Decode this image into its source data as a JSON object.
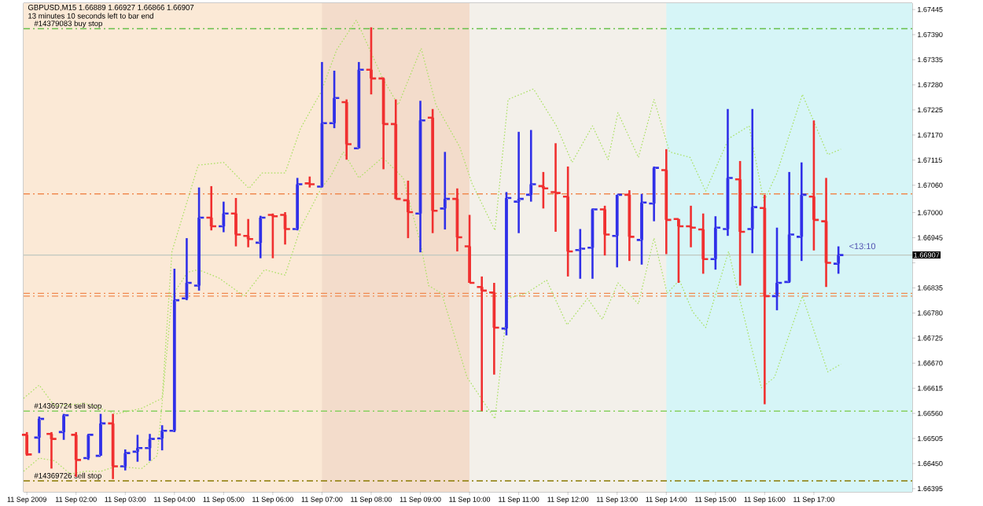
{
  "chart_data": {
    "type": "candlestick",
    "title": "GBPUSD,M15  1.66889 1.66927 1.66866 1.66907",
    "subtitle": "13 minutes 10 seconds left to bar end",
    "x": [
      "2009-09-11T01:00",
      "2009-09-11T01:15",
      "2009-09-11T01:30",
      "2009-09-11T01:45",
      "2009-09-11T02:00",
      "2009-09-11T02:15",
      "2009-09-11T02:30",
      "2009-09-11T02:45",
      "2009-09-11T03:00",
      "2009-09-11T03:15",
      "2009-09-11T03:30",
      "2009-09-11T03:45",
      "2009-09-11T04:00",
      "2009-09-11T04:15",
      "2009-09-11T04:30",
      "2009-09-11T04:45",
      "2009-09-11T05:00",
      "2009-09-11T05:15",
      "2009-09-11T05:30",
      "2009-09-11T05:45",
      "2009-09-11T06:00",
      "2009-09-11T06:15",
      "2009-09-11T06:30",
      "2009-09-11T06:45",
      "2009-09-11T07:00",
      "2009-09-11T07:15",
      "2009-09-11T07:30",
      "2009-09-11T07:45",
      "2009-09-11T08:00",
      "2009-09-11T08:15",
      "2009-09-11T08:30",
      "2009-09-11T08:45",
      "2009-09-11T09:00",
      "2009-09-11T09:15",
      "2009-09-11T09:30",
      "2009-09-11T09:45",
      "2009-09-11T10:00",
      "2009-09-11T10:15",
      "2009-09-11T10:30",
      "2009-09-11T10:45",
      "2009-09-11T11:00",
      "2009-09-11T11:15",
      "2009-09-11T11:30",
      "2009-09-11T11:45",
      "2009-09-11T12:00",
      "2009-09-11T12:15",
      "2009-09-11T12:30",
      "2009-09-11T12:45",
      "2009-09-11T13:00",
      "2009-09-11T13:15",
      "2009-09-11T13:30",
      "2009-09-11T13:45",
      "2009-09-11T14:00",
      "2009-09-11T14:15",
      "2009-09-11T14:30",
      "2009-09-11T14:45",
      "2009-09-11T15:00",
      "2009-09-11T15:15",
      "2009-09-11T15:30",
      "2009-09-11T15:45",
      "2009-09-11T16:00",
      "2009-09-11T16:15",
      "2009-09-11T16:30",
      "2009-09-11T16:45",
      "2009-09-11T17:00",
      "2009-09-11T17:15",
      "2009-09-11T17:30"
    ],
    "ohlc": [
      [
        1.66513,
        1.66519,
        1.66467,
        1.6647
      ],
      [
        1.66507,
        1.66553,
        1.66473,
        1.66548
      ],
      [
        1.66515,
        1.66519,
        1.66439,
        1.66504
      ],
      [
        1.66519,
        1.66559,
        1.66502,
        1.66556
      ],
      [
        1.66513,
        1.66519,
        1.66421,
        1.66458
      ],
      [
        1.66462,
        1.66515,
        1.66458,
        1.66513
      ],
      [
        1.66467,
        1.66559,
        1.66467,
        1.66538
      ],
      [
        1.66538,
        1.66559,
        1.66416,
        1.66444
      ],
      [
        1.66444,
        1.66481,
        1.66435,
        1.66473
      ],
      [
        1.66476,
        1.66513,
        1.66454,
        1.66484
      ],
      [
        1.66484,
        1.66515,
        1.66456,
        1.66504
      ],
      [
        1.66505,
        1.66534,
        1.66479,
        1.66522
      ],
      [
        1.66522,
        1.66877,
        1.66519,
        1.66808
      ],
      [
        1.66812,
        1.66944,
        1.66808,
        1.66846
      ],
      [
        1.6684,
        1.67055,
        1.66829,
        1.66989
      ],
      [
        1.66989,
        1.67058,
        1.66961,
        1.6697
      ],
      [
        1.6697,
        1.67024,
        1.66957,
        1.66998
      ],
      [
        1.66998,
        1.67032,
        1.66926,
        1.66952
      ],
      [
        1.66949,
        1.66986,
        1.66924,
        1.66942
      ],
      [
        1.66934,
        1.66993,
        1.669,
        1.66989
      ],
      [
        1.66995,
        1.66998,
        1.669,
        1.66992
      ],
      [
        1.66995,
        1.67001,
        1.6693,
        1.66964
      ],
      [
        1.66964,
        1.67076,
        1.66961,
        1.67062
      ],
      [
        1.67064,
        1.67079,
        1.67055,
        1.67062
      ],
      [
        1.67057,
        1.6733,
        1.67055,
        1.67196
      ],
      [
        1.67196,
        1.67311,
        1.67185,
        1.67251
      ],
      [
        1.67242,
        1.67248,
        1.67116,
        1.6715
      ],
      [
        1.67141,
        1.6733,
        1.67141,
        1.67313
      ],
      [
        1.67313,
        1.67406,
        1.67259,
        1.67294
      ],
      [
        1.67294,
        1.67296,
        1.67095,
        1.67194
      ],
      [
        1.67194,
        1.67248,
        1.6703,
        1.6703
      ],
      [
        1.67027,
        1.6707,
        1.66944,
        1.67001
      ],
      [
        1.66998,
        1.67245,
        1.66913,
        1.67202
      ],
      [
        1.67208,
        1.67227,
        1.66955,
        1.67004
      ],
      [
        1.67009,
        1.67133,
        1.66963,
        1.6703
      ],
      [
        1.6703,
        1.67053,
        1.66915,
        1.66946
      ],
      [
        1.66926,
        1.66995,
        1.66846,
        1.66846
      ],
      [
        1.66837,
        1.6686,
        1.66565,
        1.66829
      ],
      [
        1.66825,
        1.66846,
        1.66645,
        1.66748
      ],
      [
        1.66746,
        1.67045,
        1.66731,
        1.67032
      ],
      [
        1.67024,
        1.67177,
        1.66955,
        1.6703
      ],
      [
        1.67039,
        1.67181,
        1.67024,
        1.67062
      ],
      [
        1.67058,
        1.67089,
        1.67009,
        1.67053
      ],
      [
        1.67045,
        1.67152,
        1.66958,
        1.67043
      ],
      [
        1.67035,
        1.67101,
        1.6686,
        1.66915
      ],
      [
        1.66918,
        1.66964,
        1.66855,
        1.66921
      ],
      [
        1.66923,
        1.67009,
        1.66855,
        1.67007
      ],
      [
        1.67007,
        1.67015,
        1.66906,
        1.66952
      ],
      [
        1.66949,
        1.67039,
        1.6688,
        1.67039
      ],
      [
        1.67039,
        1.67049,
        1.66894,
        1.66947
      ],
      [
        1.6694,
        1.67041,
        1.66886,
        1.67022
      ],
      [
        1.6702,
        1.67101,
        1.66981,
        1.67098
      ],
      [
        1.67093,
        1.67139,
        1.66909,
        1.66984
      ],
      [
        1.66986,
        1.66986,
        1.66846,
        1.6697
      ],
      [
        1.6697,
        1.67015,
        1.66924,
        1.66967
      ],
      [
        1.66963,
        1.66998,
        1.66866,
        1.66898
      ],
      [
        1.66898,
        1.66992,
        1.66875,
        1.66967
      ],
      [
        1.66964,
        1.67227,
        1.66949,
        1.67076
      ],
      [
        1.67073,
        1.67113,
        1.6684,
        1.66958
      ],
      [
        1.66964,
        1.67227,
        1.66911,
        1.67012
      ],
      [
        1.6701,
        1.67039,
        1.6658,
        1.66817
      ],
      [
        1.66817,
        1.66967,
        1.66786,
        1.66846
      ],
      [
        1.66848,
        1.67089,
        1.66846,
        1.66952
      ],
      [
        1.66947,
        1.6711,
        1.66894,
        1.67039
      ],
      [
        1.67035,
        1.67202,
        1.66917,
        1.66984
      ],
      [
        1.66981,
        1.67076,
        1.66837,
        1.6689
      ],
      [
        1.66888,
        1.66926,
        1.66866,
        1.66907
      ]
    ],
    "colors": [
      "#f03030",
      "#3030e8",
      "#f03030",
      "#3030e8",
      "#f03030",
      "#3030e8",
      "#3030e8",
      "#f03030",
      "#3030e8",
      "#3030e8",
      "#3030e8",
      "#3030e8",
      "#3030e8",
      "#3030e8",
      "#3030e8",
      "#f03030",
      "#3030e8",
      "#f03030",
      "#f03030",
      "#3030e8",
      "#f03030",
      "#f03030",
      "#3030e8",
      "#f03030",
      "#3030e8",
      "#3030e8",
      "#f03030",
      "#3030e8",
      "#f03030",
      "#f03030",
      "#f03030",
      "#f03030",
      "#3030e8",
      "#f03030",
      "#3030e8",
      "#f03030",
      "#f03030",
      "#f03030",
      "#f03030",
      "#3030e8",
      "#3030e8",
      "#3030e8",
      "#f03030",
      "#f03030",
      "#f03030",
      "#3030e8",
      "#3030e8",
      "#f03030",
      "#3030e8",
      "#f03030",
      "#3030e8",
      "#3030e8",
      "#f03030",
      "#f03030",
      "#f03030",
      "#f03030",
      "#3030e8",
      "#3030e8",
      "#f03030",
      "#3030e8",
      "#f03030",
      "#3030e8",
      "#3030e8",
      "#3030e8",
      "#f03030",
      "#f03030",
      "#3030e8"
    ],
    "series": [
      {
        "type": "line",
        "color": "#a8e060",
        "marker": "none",
        "line_style": "dotted",
        "x": [
          "2009-09-11T00:56",
          "2009-09-11T01:15",
          "2009-09-11T01:34",
          "2009-09-11T02:11",
          "2009-09-11T02:49",
          "2009-09-11T03:20",
          "2009-09-11T03:45",
          "2009-09-11T03:57",
          "2009-09-11T04:29",
          "2009-09-11T05:00",
          "2009-09-11T05:31",
          "2009-09-11T05:47",
          "2009-09-11T06:15",
          "2009-09-11T06:34",
          "2009-09-11T06:59",
          "2009-09-11T07:18",
          "2009-09-11T07:42",
          "2009-09-11T08:14",
          "2009-09-11T08:33",
          "2009-09-11T09:01",
          "2009-09-11T09:19",
          "2009-09-11T09:48",
          "2009-09-11T10:03",
          "2009-09-11T10:31",
          "2009-09-11T10:47",
          "2009-09-11T11:18",
          "2009-09-11T11:46",
          "2009-09-11T12:05",
          "2009-09-11T12:30",
          "2009-09-11T12:49",
          "2009-09-11T13:01",
          "2009-09-11T13:26",
          "2009-09-11T13:45",
          "2009-09-11T14:04",
          "2009-09-11T14:29",
          "2009-09-11T14:48",
          "2009-09-11T15:16",
          "2009-09-11T15:41",
          "2009-09-11T15:59",
          "2009-09-11T16:15",
          "2009-09-11T16:46",
          "2009-09-11T17:17",
          "2009-09-11T17:33"
        ],
        "values": [
          1.66593,
          1.66622,
          1.66576,
          1.66582,
          1.66559,
          1.66571,
          1.66593,
          1.66915,
          1.67104,
          1.6711,
          1.67053,
          1.67087,
          1.67087,
          1.67185,
          1.67265,
          1.67357,
          1.67422,
          1.67294,
          1.67236,
          1.6736,
          1.67236,
          1.67144,
          1.67064,
          1.66961,
          1.67248,
          1.67271,
          1.6719,
          1.6711,
          1.6719,
          1.67116,
          1.67219,
          1.67121,
          1.67248,
          1.67133,
          1.67121,
          1.67047,
          1.67162,
          1.6719,
          1.67024,
          1.67087,
          1.67259,
          1.67127,
          1.67139
        ]
      },
      {
        "type": "line",
        "color": "#a8e060",
        "marker": "none",
        "line_style": "dotted",
        "x": [
          "2009-09-11T00:56",
          "2009-09-11T01:15",
          "2009-09-11T01:34",
          "2009-09-11T01:53",
          "2009-09-11T02:11",
          "2009-09-11T02:30",
          "2009-09-11T02:49",
          "2009-09-11T03:20",
          "2009-09-11T03:39",
          "2009-09-11T03:57",
          "2009-09-11T04:16",
          "2009-09-11T04:29",
          "2009-09-11T04:54",
          "2009-09-11T05:25",
          "2009-09-11T05:50",
          "2009-09-11T06:15",
          "2009-09-11T06:34",
          "2009-09-11T06:59",
          "2009-09-11T07:11",
          "2009-09-11T07:26",
          "2009-09-11T07:45",
          "2009-09-11T08:14",
          "2009-09-11T08:39",
          "2009-09-11T09:01",
          "2009-09-11T09:10",
          "2009-09-11T09:26",
          "2009-09-11T09:57",
          "2009-09-11T10:31",
          "2009-09-11T10:47",
          "2009-09-11T11:09",
          "2009-09-11T11:34",
          "2009-09-11T11:59",
          "2009-09-11T12:24",
          "2009-09-11T12:42",
          "2009-09-11T13:01",
          "2009-09-11T13:26",
          "2009-09-11T13:45",
          "2009-09-11T14:01",
          "2009-09-11T14:16",
          "2009-09-11T14:32",
          "2009-09-11T14:48",
          "2009-09-11T15:16",
          "2009-09-11T15:31",
          "2009-09-11T15:56",
          "2009-09-11T16:12",
          "2009-09-11T16:46",
          "2009-09-11T17:17",
          "2009-09-11T17:33"
        ],
        "values": [
          1.66433,
          1.66462,
          1.66456,
          1.66427,
          1.66433,
          1.66433,
          1.66444,
          1.66439,
          1.66467,
          1.66817,
          1.66869,
          1.66875,
          1.66857,
          1.66817,
          1.66875,
          1.66863,
          1.66967,
          1.67053,
          1.67081,
          1.67133,
          1.67076,
          1.67121,
          1.67076,
          1.66926,
          1.6684,
          1.66823,
          1.66639,
          1.66548,
          1.66812,
          1.66823,
          1.66852,
          1.66754,
          1.66812,
          1.66766,
          1.66846,
          1.668,
          1.66944,
          1.66823,
          1.66852,
          1.66783,
          1.66748,
          1.66915,
          1.668,
          1.66616,
          1.66639,
          1.66817,
          1.66651,
          1.66668
        ]
      }
    ],
    "bands": [
      {
        "axis": "x",
        "from": "2009-09-11T00:56",
        "to": "2009-09-11T10:00",
        "color": "#fbe9d6"
      },
      {
        "axis": "x",
        "from": "2009-09-11T07:00",
        "to": "2009-09-11T10:00",
        "color": "#f3dccb"
      },
      {
        "axis": "x",
        "from": "2009-09-11T10:00",
        "to": "2009-09-11T16:00",
        "color": "#f3f0ea"
      },
      {
        "axis": "x",
        "from": "2009-09-11T14:00",
        "to": "2009-09-11T19:00",
        "color": "#d6f5f7"
      }
    ],
    "ref_lines": [
      {
        "axis": "y",
        "value": 1.67403,
        "label": "#14379083 buy stop",
        "color": "#66c04a",
        "line_style": "dashed"
      },
      {
        "axis": "y",
        "value": 1.67041,
        "color": "#f08a50",
        "line_style": "dashed"
      },
      {
        "axis": "y",
        "value": 1.66823,
        "color": "#f08a50",
        "line_style": "dashed"
      },
      {
        "axis": "y",
        "value": 1.66817,
        "color": "#f08a50",
        "line_style": "dashed"
      },
      {
        "axis": "y",
        "value": 1.66565,
        "label": "#14369724 sell stop",
        "color": "#88d060",
        "line_style": "dashed"
      },
      {
        "axis": "y",
        "value": 1.66412,
        "label": "#14369726 sell stop",
        "color": "#8a7a00",
        "line_style": "dashed"
      },
      {
        "axis": "y",
        "value": 1.66907,
        "label": "1.66907",
        "color": "#c0c8c0",
        "line_style": "solid"
      }
    ],
    "annotations": [
      "<13:10"
    ],
    "xlim": [
      "2009-09-11T00:56",
      "2009-09-11T19:00"
    ],
    "ylim": [
      1.66388,
      1.67459
    ],
    "xticks": [
      {
        "value": "2009-09-11T01:00",
        "label": "11 Sep 2009"
      },
      {
        "value": "2009-09-11T02:00",
        "label": "11 Sep 02:00"
      },
      {
        "value": "2009-09-11T03:00",
        "label": "11 Sep 03:00"
      },
      {
        "value": "2009-09-11T04:00",
        "label": "11 Sep 04:00"
      },
      {
        "value": "2009-09-11T05:00",
        "label": "11 Sep 05:00"
      },
      {
        "value": "2009-09-11T06:00",
        "label": "11 Sep 06:00"
      },
      {
        "value": "2009-09-11T07:00",
        "label": "11 Sep 07:00"
      },
      {
        "value": "2009-09-11T08:00",
        "label": "11 Sep 08:00"
      },
      {
        "value": "2009-09-11T09:00",
        "label": "11 Sep 09:00"
      },
      {
        "value": "2009-09-11T10:00",
        "label": "11 Sep 10:00"
      },
      {
        "value": "2009-09-11T11:00",
        "label": "11 Sep 11:00"
      },
      {
        "value": "2009-09-11T12:00",
        "label": "11 Sep 12:00"
      },
      {
        "value": "2009-09-11T13:00",
        "label": "11 Sep 13:00"
      },
      {
        "value": "2009-09-11T14:00",
        "label": "11 Sep 14:00"
      },
      {
        "value": "2009-09-11T15:00",
        "label": "11 Sep 15:00"
      },
      {
        "value": "2009-09-11T16:00",
        "label": "11 Sep 16:00"
      },
      {
        "value": "2009-09-11T17:00",
        "label": "11 Sep 17:00"
      }
    ],
    "yticks": [
      {
        "value": 1.67445,
        "label": "1.67445"
      },
      {
        "value": 1.6739,
        "label": "1.67390"
      },
      {
        "value": 1.67335,
        "label": "1.67335"
      },
      {
        "value": 1.6728,
        "label": "1.67280"
      },
      {
        "value": 1.67225,
        "label": "1.67225"
      },
      {
        "value": 1.6717,
        "label": "1.67170"
      },
      {
        "value": 1.67115,
        "label": "1.67115"
      },
      {
        "value": 1.6706,
        "label": "1.67060"
      },
      {
        "value": 1.67,
        "label": "1.67000"
      },
      {
        "value": 1.66945,
        "label": "1.66945"
      },
      {
        "value": 1.6689,
        "label": null
      },
      {
        "value": 1.66835,
        "label": "1.66835"
      },
      {
        "value": 1.6678,
        "label": "1.66780"
      },
      {
        "value": 1.66725,
        "label": "1.66725"
      },
      {
        "value": 1.6667,
        "label": "1.66670"
      },
      {
        "value": 1.66615,
        "label": "1.66615"
      },
      {
        "value": 1.6656,
        "label": "1.66560"
      },
      {
        "value": 1.66505,
        "label": "1.66505"
      },
      {
        "value": 1.6645,
        "label": "1.66450"
      },
      {
        "value": 1.66395,
        "label": "1.66395"
      }
    ]
  }
}
